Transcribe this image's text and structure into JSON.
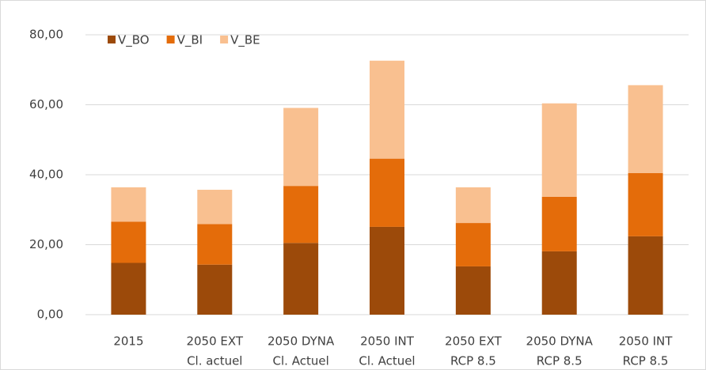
{
  "chart_data": {
    "type": "stacked_bar",
    "categories": [
      [
        "2015"
      ],
      [
        "2050 EXT",
        "Cl. actuel"
      ],
      [
        "2050 DYNA",
        "Cl. Actuel"
      ],
      [
        "2050 INT",
        "Cl. Actuel"
      ],
      [
        "2050 EXT",
        "RCP 8.5"
      ],
      [
        "2050 DYNA",
        "RCP 8.5"
      ],
      [
        "2050 INT",
        "RCP 8.5"
      ]
    ],
    "series": [
      {
        "name": "V_BO",
        "color": "#9c4a0a",
        "values": [
          14.8,
          14.3,
          20.5,
          25.1,
          13.8,
          18.1,
          22.4
        ]
      },
      {
        "name": "V_BI",
        "color": "#e46c0a",
        "values": [
          11.8,
          11.6,
          16.3,
          19.5,
          12.4,
          15.6,
          18.1
        ]
      },
      {
        "name": "V_BE",
        "color": "#f9c090",
        "values": [
          9.8,
          9.8,
          22.3,
          28.0,
          10.2,
          26.7,
          25.1
        ]
      }
    ],
    "ylim": [
      0,
      80
    ],
    "yticks": [
      {
        "value": 0,
        "label": "0,00"
      },
      {
        "value": 20,
        "label": "20,00"
      },
      {
        "value": 40,
        "label": "40,00"
      },
      {
        "value": 60,
        "label": "60,00"
      },
      {
        "value": 80,
        "label": "80,00"
      }
    ],
    "grid": true,
    "legend": "top-left"
  }
}
